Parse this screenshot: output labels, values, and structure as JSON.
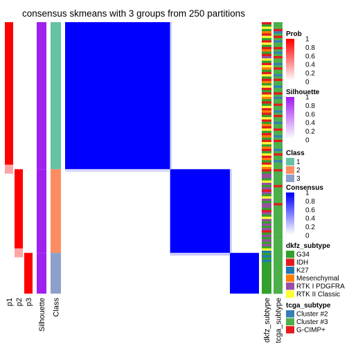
{
  "chart_data": {
    "type": "heatmap",
    "title": "consensus skmeans with 3 groups from 250 partitions",
    "n_samples": 120,
    "groups": [
      {
        "class": 1,
        "size": 65
      },
      {
        "class": 2,
        "size": 37
      },
      {
        "class": 3,
        "size": 18
      }
    ],
    "group_colors": {
      "1": "#66c2a5",
      "2": "#fc8d62",
      "3": "#8da0cb"
    },
    "prob_tracks": [
      "p1",
      "p2",
      "p3"
    ],
    "column_annotations": [
      "Silhouette",
      "Class"
    ],
    "row_annotations": [
      "dkfz_subtype",
      "tcga_subtype"
    ],
    "consensus_within": 1.0,
    "consensus_between": 0.0,
    "silhouette_values": [
      1.0,
      1.0,
      1.0
    ],
    "transition_samples": {
      "between_1_2": 0.15,
      "between_2_3": 0.2
    },
    "legends": {
      "prob": {
        "title": "Prob",
        "ticks": [
          "1",
          "0.8",
          "0.6",
          "0.4",
          "0.2",
          "0"
        ],
        "color_low": "#ffffff",
        "color_high": "#ff0000"
      },
      "silhouette": {
        "title": "Silhouette",
        "ticks": [
          "1",
          "0.8",
          "0.6",
          "0.4",
          "0.2",
          "0"
        ],
        "color_low": "#ffffff",
        "color_high": "#a020f0"
      },
      "class": {
        "title": "Class",
        "items": [
          {
            "label": "1",
            "color": "#66c2a5"
          },
          {
            "label": "2",
            "color": "#fc8d62"
          },
          {
            "label": "3",
            "color": "#8da0cb"
          }
        ]
      },
      "consensus": {
        "title": "Consensus",
        "ticks": [
          "1",
          "0.8",
          "0.6",
          "0.4",
          "0.2",
          "0"
        ],
        "color_low": "#ffffff",
        "color_high": "#0000ff"
      },
      "dkfz_subtype": {
        "title": "dkfz_subtype",
        "items": [
          {
            "label": "G34",
            "color": "#33a02c"
          },
          {
            "label": "IDH",
            "color": "#e31a1c"
          },
          {
            "label": "K27",
            "color": "#1f78b4"
          },
          {
            "label": "Mesenchymal",
            "color": "#ff7f00"
          },
          {
            "label": "RTK I PDGFRA",
            "color": "#984ea3"
          },
          {
            "label": "RTK II Classic",
            "color": "#ffff33"
          }
        ]
      },
      "tcga_subtype": {
        "title": "tcga_subtype",
        "items": [
          {
            "label": "Cluster #2",
            "color": "#377eb8"
          },
          {
            "label": "Cluster #3",
            "color": "#4daf4a"
          },
          {
            "label": "G-CIMP+",
            "color": "#e41a1c"
          }
        ]
      }
    },
    "dkfz_sequence": [
      "IDH",
      "G34",
      "RTK II Classic",
      "G34",
      "Mesenchymal",
      "IDH",
      "RTK II Classic",
      "G34",
      "IDH",
      "RTK II Classic",
      "G34",
      "IDH",
      "Mesenchymal",
      "G34",
      "IDH",
      "RTK I PDGFRA",
      "RTK II Classic",
      "G34",
      "IDH",
      "RTK II Classic",
      "Mesenchymal",
      "G34",
      "IDH",
      "RTK II Classic",
      "G34",
      "IDH",
      "Mesenchymal",
      "G34",
      "RTK II Classic",
      "IDH",
      "G34",
      "IDH",
      "RTK II Classic",
      "Mesenchymal",
      "G34",
      "IDH",
      "G34",
      "RTK II Classic",
      "IDH",
      "Mesenchymal",
      "IDH",
      "G34",
      "RTK II Classic",
      "IDH",
      "G34",
      "Mesenchymal",
      "IDH",
      "RTK II Classic",
      "G34",
      "IDH",
      "Mesenchymal",
      "G34",
      "IDH",
      "RTK II Classic",
      "G34",
      "Mesenchymal",
      "IDH",
      "G34",
      "RTK II Classic",
      "IDH",
      "Mesenchymal",
      "G34",
      "IDH",
      "RTK II Classic",
      "Mesenchymal",
      "IDH",
      "G34",
      "RTK I PDGFRA",
      "RTK I PDGFRA",
      "G34",
      "RTK II Classic",
      "RTK I PDGFRA",
      "G34",
      "RTK I PDGFRA",
      "IDH",
      "RTK I PDGFRA",
      "G34",
      "RTK II Classic",
      "RTK I PDGFRA",
      "G34",
      "RTK I PDGFRA",
      "RTK I PDGFRA",
      "G34",
      "IDH",
      "RTK I PDGFRA",
      "G34",
      "RTK II Classic",
      "RTK I PDGFRA",
      "G34",
      "RTK I PDGFRA",
      "G34",
      "RTK I PDGFRA",
      "IDH",
      "G34",
      "RTK I PDGFRA",
      "G34",
      "RTK I PDGFRA",
      "G34",
      "RTK I PDGFRA",
      "G34",
      "RTK II Classic",
      "K27",
      "G34",
      "K27",
      "G34",
      "K27",
      "G34",
      "G34",
      "G34",
      "G34",
      "G34",
      "G34",
      "G34",
      "G34",
      "G34",
      "G34",
      "G34",
      "G34",
      "G34",
      "G34"
    ],
    "tcga_sequence": [
      "Cluster #3",
      "Cluster #3",
      "Cluster #3",
      "G-CIMP+",
      "Cluster #2",
      "Cluster #3",
      "G-CIMP+",
      "Cluster #3",
      "Cluster #2",
      "Cluster #3",
      "Cluster #3",
      "G-CIMP+",
      "Cluster #3",
      "Cluster #2",
      "Cluster #3",
      "G-CIMP+",
      "Cluster #3",
      "Cluster #3",
      "Cluster #2",
      "Cluster #3",
      "G-CIMP+",
      "Cluster #3",
      "Cluster #3",
      "Cluster #2",
      "Cluster #3",
      "G-CIMP+",
      "Cluster #3",
      "Cluster #3",
      "Cluster #2",
      "Cluster #3",
      "Cluster #3",
      "G-CIMP+",
      "Cluster #3",
      "Cluster #2",
      "Cluster #3",
      "Cluster #3",
      "G-CIMP+",
      "Cluster #3",
      "Cluster #3",
      "Cluster #2",
      "Cluster #3",
      "G-CIMP+",
      "Cluster #3",
      "Cluster #3",
      "Cluster #2",
      "Cluster #3",
      "Cluster #3",
      "G-CIMP+",
      "Cluster #3",
      "Cluster #3",
      "Cluster #2",
      "Cluster #3",
      "G-CIMP+",
      "Cluster #3",
      "Cluster #3",
      "Cluster #3",
      "Cluster #2",
      "Cluster #3",
      "G-CIMP+",
      "Cluster #3",
      "Cluster #3",
      "Cluster #2",
      "Cluster #3",
      "Cluster #3",
      "Cluster #3",
      "G-CIMP+",
      "Cluster #3",
      "Cluster #3",
      "Cluster #3",
      "Cluster #3",
      "Cluster #3",
      "Cluster #3",
      "G-CIMP+",
      "Cluster #3",
      "Cluster #3",
      "Cluster #3",
      "Cluster #3",
      "Cluster #3",
      "Cluster #3",
      "Cluster #3",
      "G-CIMP+",
      "Cluster #3",
      "Cluster #3",
      "Cluster #3",
      "Cluster #3",
      "Cluster #3",
      "Cluster #3",
      "Cluster #3",
      "Cluster #3",
      "Cluster #3",
      "Cluster #3",
      "Cluster #3",
      "Cluster #3",
      "Cluster #3",
      "Cluster #3",
      "Cluster #3",
      "Cluster #3",
      "Cluster #3",
      "Cluster #3",
      "Cluster #3",
      "Cluster #3",
      "Cluster #3",
      "Cluster #3",
      "Cluster #3",
      "Cluster #3",
      "Cluster #3",
      "Cluster #3",
      "Cluster #3",
      "Cluster #3",
      "Cluster #3",
      "Cluster #3",
      "Cluster #3",
      "Cluster #3",
      "Cluster #3",
      "Cluster #3",
      "Cluster #3",
      "Cluster #3",
      "Cluster #3",
      "Cluster #3",
      "Cluster #3"
    ]
  }
}
